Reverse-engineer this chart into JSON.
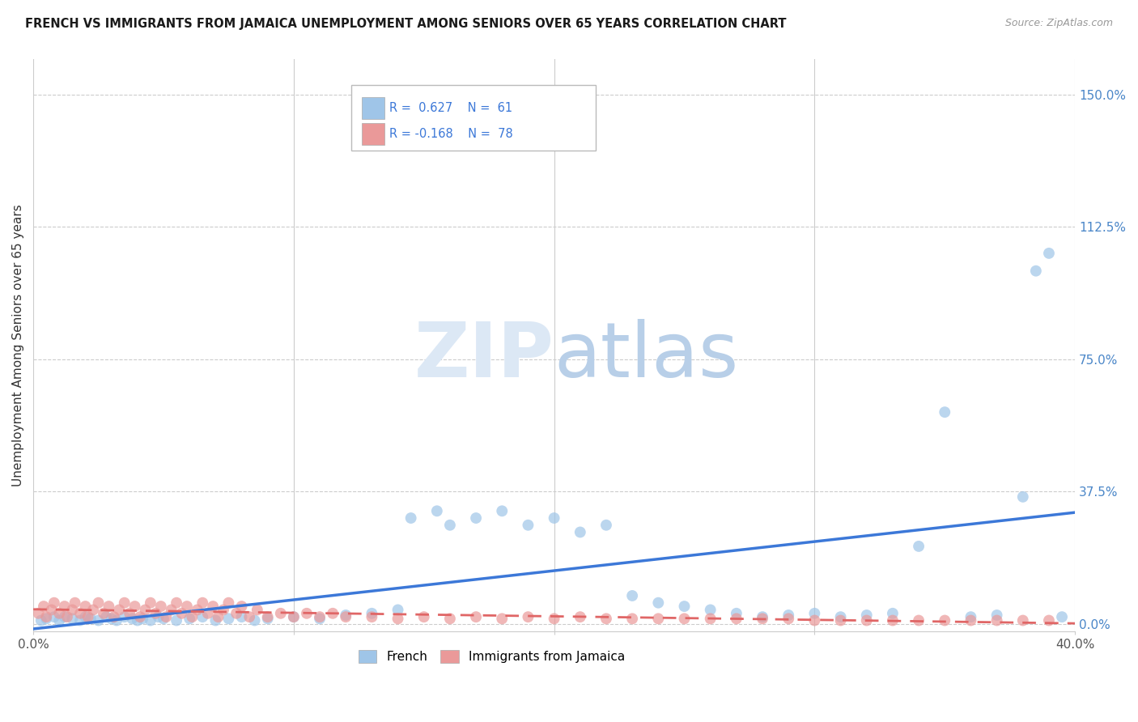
{
  "title": "FRENCH VS IMMIGRANTS FROM JAMAICA UNEMPLOYMENT AMONG SENIORS OVER 65 YEARS CORRELATION CHART",
  "source": "Source: ZipAtlas.com",
  "ylabel": "Unemployment Among Seniors over 65 years",
  "ytick_values": [
    0,
    37.5,
    75.0,
    112.5,
    150.0
  ],
  "xlim": [
    0.0,
    40.0
  ],
  "ylim": [
    -2.0,
    160.0
  ],
  "color_french": "#9fc5e8",
  "color_jamaica": "#ea9999",
  "color_french_line": "#3c78d8",
  "color_jamaica_line": "#e06666",
  "background_color": "#ffffff",
  "watermark_color": "#dce8f5",
  "french_x": [
    0.3,
    0.5,
    0.8,
    1.0,
    1.2,
    1.5,
    1.8,
    2.0,
    2.2,
    2.5,
    2.8,
    3.0,
    3.2,
    3.5,
    3.8,
    4.0,
    4.2,
    4.5,
    4.8,
    5.0,
    5.5,
    6.0,
    6.5,
    7.0,
    7.5,
    8.0,
    8.5,
    9.0,
    10.0,
    11.0,
    12.0,
    13.0,
    14.0,
    14.5,
    15.5,
    16.0,
    17.0,
    18.0,
    19.0,
    20.0,
    21.0,
    22.0,
    23.0,
    24.0,
    25.0,
    26.0,
    27.0,
    28.0,
    29.0,
    30.0,
    31.0,
    32.0,
    33.0,
    34.0,
    35.0,
    36.0,
    37.0,
    38.0,
    38.5,
    39.0,
    39.5
  ],
  "french_y": [
    1.0,
    1.5,
    2.0,
    1.0,
    2.0,
    1.5,
    1.0,
    2.0,
    1.5,
    1.0,
    2.0,
    1.5,
    1.0,
    2.0,
    1.5,
    1.0,
    1.5,
    1.0,
    2.0,
    1.5,
    1.0,
    1.5,
    2.0,
    1.0,
    1.5,
    2.0,
    1.0,
    1.5,
    2.0,
    1.5,
    2.5,
    3.0,
    4.0,
    30.0,
    32.0,
    28.0,
    30.0,
    32.0,
    28.0,
    30.0,
    26.0,
    28.0,
    8.0,
    6.0,
    5.0,
    4.0,
    3.0,
    2.0,
    2.5,
    3.0,
    2.0,
    2.5,
    3.0,
    22.0,
    60.0,
    2.0,
    2.5,
    36.0,
    100.0,
    105.0,
    2.0
  ],
  "jamaica_x": [
    0.2,
    0.4,
    0.5,
    0.7,
    0.8,
    1.0,
    1.2,
    1.3,
    1.5,
    1.6,
    1.8,
    2.0,
    2.1,
    2.3,
    2.5,
    2.7,
    2.9,
    3.1,
    3.3,
    3.5,
    3.7,
    3.9,
    4.1,
    4.3,
    4.5,
    4.7,
    4.9,
    5.1,
    5.3,
    5.5,
    5.7,
    5.9,
    6.1,
    6.3,
    6.5,
    6.7,
    6.9,
    7.1,
    7.3,
    7.5,
    7.8,
    8.0,
    8.3,
    8.6,
    9.0,
    9.5,
    10.0,
    10.5,
    11.0,
    11.5,
    12.0,
    13.0,
    14.0,
    15.0,
    16.0,
    17.0,
    18.0,
    19.0,
    20.0,
    21.0,
    22.0,
    23.0,
    24.0,
    25.0,
    26.0,
    27.0,
    28.0,
    29.0,
    30.0,
    31.0,
    32.0,
    33.0,
    34.0,
    35.0,
    36.0,
    37.0,
    38.0,
    39.0
  ],
  "jamaica_y": [
    3.0,
    5.0,
    2.0,
    4.0,
    6.0,
    3.0,
    5.0,
    2.0,
    4.0,
    6.0,
    3.0,
    5.0,
    2.0,
    4.0,
    6.0,
    3.0,
    5.0,
    2.0,
    4.0,
    6.0,
    3.0,
    5.0,
    2.0,
    4.0,
    6.0,
    3.0,
    5.0,
    2.0,
    4.0,
    6.0,
    3.0,
    5.0,
    2.0,
    4.0,
    6.0,
    3.0,
    5.0,
    2.0,
    4.0,
    6.0,
    3.0,
    5.0,
    2.0,
    4.0,
    2.0,
    3.0,
    2.0,
    3.0,
    2.0,
    3.0,
    2.0,
    2.0,
    1.5,
    2.0,
    1.5,
    2.0,
    1.5,
    2.0,
    1.5,
    2.0,
    1.5,
    1.5,
    1.5,
    1.5,
    1.5,
    1.5,
    1.5,
    1.5,
    1.0,
    1.0,
    1.0,
    1.0,
    1.0,
    1.0,
    1.0,
    1.0,
    1.0,
    1.0
  ]
}
